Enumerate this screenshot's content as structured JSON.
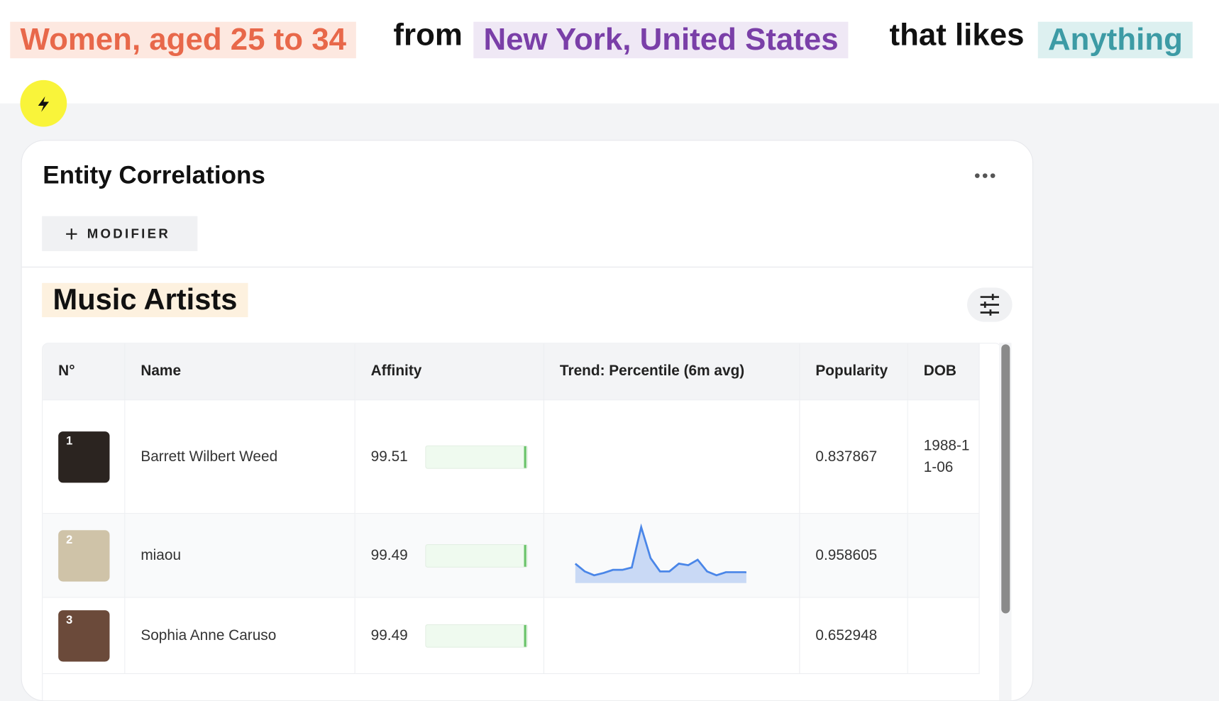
{
  "header": {
    "segments": [
      "Women, aged 25 to 34",
      "from",
      "New York, United States",
      "that likes",
      "Anything"
    ]
  },
  "panel": {
    "title": "Entity Correlations",
    "modifier_button": "MODIFIER",
    "section_title": "Music Artists",
    "table": {
      "columns": [
        "N°",
        "Name",
        "Affinity",
        "Trend: Percentile (6m avg)",
        "Popularity",
        "DOB"
      ],
      "rows": [
        {
          "rank": "1",
          "name": "Barrett Wilbert Weed",
          "affinity": 99.51,
          "trend": null,
          "popularity": 0.837867,
          "dob": "1988-11-06"
        },
        {
          "rank": "2",
          "name": "miaou",
          "affinity": 99.49,
          "trend": [
            25,
            15,
            10,
            13,
            17,
            17,
            20,
            72,
            32,
            15,
            15,
            25,
            23,
            30,
            15,
            10,
            14,
            14,
            14,
            13
          ],
          "popularity": 0.958605,
          "dob": null
        },
        {
          "rank": "3",
          "name": "Sophia Anne Caruso",
          "affinity": 99.49,
          "trend": null,
          "popularity": 0.652948,
          "dob": null
        }
      ]
    }
  }
}
